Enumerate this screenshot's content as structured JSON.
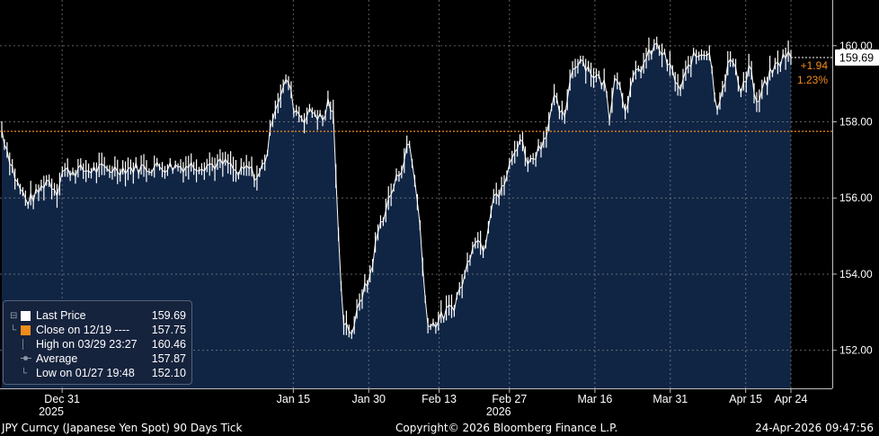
{
  "chart_data": {
    "type": "line",
    "style": "tick bars with filled area",
    "y_axis": {
      "side": "right",
      "ylim": [
        151.0,
        161.2
      ],
      "ticks": [
        "152.00",
        "154.00",
        "156.00",
        "158.00",
        "160.00"
      ],
      "grid": true
    },
    "x_axis": {
      "tick_labels": [
        "Dec 31",
        "Jan 15",
        "Jan 30",
        "Feb 13",
        "Feb 27",
        "Mar 16",
        "Mar 31",
        "Apr 15",
        "Apr 24"
      ],
      "year_labels": [
        {
          "year": "2025",
          "under": "Dec 31"
        },
        {
          "year": "2026",
          "under": "Feb 27"
        }
      ],
      "grid": true
    },
    "last_price": {
      "value": 159.69,
      "label": "159.69"
    },
    "change": {
      "abs": "+1.94",
      "pct": "1.23%"
    },
    "reference_line": {
      "value": 157.75,
      "color": "#f08c1a"
    },
    "series": [
      {
        "name": "Last Price",
        "color": "#ffffff",
        "fill": "#102544",
        "anchors": [
          [
            "Dec 19",
            157.8
          ],
          [
            "Dec 20",
            157.3
          ],
          [
            "Dec 22",
            156.4
          ],
          [
            "Dec 24",
            155.9
          ],
          [
            "Dec 26",
            156.1
          ],
          [
            "Dec 28",
            156.5
          ],
          [
            "Dec 30",
            156.2
          ],
          [
            "Dec 31",
            156.7
          ],
          [
            "Jan 02",
            156.9
          ],
          [
            "Jan 04",
            156.6
          ],
          [
            "Jan 06",
            156.8
          ],
          [
            "Jan 08",
            156.5
          ],
          [
            "Jan 10",
            157.3
          ],
          [
            "Jan 11",
            158.3
          ],
          [
            "Jan 13",
            158.9
          ],
          [
            "Jan 14",
            159.1
          ],
          [
            "Jan 15",
            158.4
          ],
          [
            "Jan 17",
            158.1
          ],
          [
            "Jan 19",
            158.3
          ],
          [
            "Jan 21",
            158.0
          ],
          [
            "Jan 22",
            158.6
          ],
          [
            "Jan 23",
            158.1
          ],
          [
            "Jan 24",
            154.9
          ],
          [
            "Jan 25",
            152.8
          ],
          [
            "Jan 27",
            152.4
          ],
          [
            "Jan 28",
            153.3
          ],
          [
            "Jan 30",
            153.8
          ],
          [
            "Feb 01",
            155.2
          ],
          [
            "Feb 04",
            156.3
          ],
          [
            "Feb 06",
            157.0
          ],
          [
            "Feb 07",
            157.5
          ],
          [
            "Feb 08",
            156.6
          ],
          [
            "Feb 09",
            155.7
          ],
          [
            "Feb 10",
            153.6
          ],
          [
            "Feb 11",
            152.6
          ],
          [
            "Feb 13",
            152.8
          ],
          [
            "Feb 16",
            153.2
          ],
          [
            "Feb 18",
            153.9
          ],
          [
            "Feb 20",
            155.0
          ],
          [
            "Feb 22",
            154.7
          ],
          [
            "Feb 24",
            156.3
          ],
          [
            "Feb 25",
            156.0
          ],
          [
            "Feb 27",
            156.8
          ],
          [
            "Mar 01",
            157.6
          ],
          [
            "Mar 03",
            156.9
          ],
          [
            "Mar 06",
            157.6
          ],
          [
            "Mar 08",
            158.6
          ],
          [
            "Mar 10",
            158.0
          ],
          [
            "Mar 11",
            159.2
          ],
          [
            "Mar 13",
            159.7
          ],
          [
            "Mar 16",
            159.2
          ],
          [
            "Mar 18",
            159.0
          ],
          [
            "Mar 19",
            158.1
          ],
          [
            "Mar 20",
            159.4
          ],
          [
            "Mar 22",
            158.4
          ],
          [
            "Mar 24",
            159.2
          ],
          [
            "Mar 26",
            159.6
          ],
          [
            "Mar 28",
            160.0
          ],
          [
            "Mar 29",
            159.9
          ],
          [
            "Mar 31",
            159.4
          ],
          [
            "Apr 02",
            158.8
          ],
          [
            "Apr 04",
            159.6
          ],
          [
            "Apr 06",
            159.8
          ],
          [
            "Apr 08",
            159.9
          ],
          [
            "Apr 09",
            158.3
          ],
          [
            "Apr 11",
            159.2
          ],
          [
            "Apr 12",
            159.7
          ],
          [
            "Apr 14",
            158.9
          ],
          [
            "Apr 15",
            159.1
          ],
          [
            "Apr 16",
            159.6
          ],
          [
            "Apr 17",
            158.3
          ],
          [
            "Apr 18",
            158.7
          ],
          [
            "Apr 20",
            159.3
          ],
          [
            "Apr 22",
            159.6
          ],
          [
            "Apr 23",
            159.8
          ],
          [
            "Apr 24",
            159.69
          ]
        ]
      }
    ],
    "legend": {
      "placement": "bottom-left",
      "entries": [
        {
          "label": "Last Price",
          "value": "159.69",
          "marker": "white-square"
        },
        {
          "label": "Close on 12/19 ----",
          "value": "157.75",
          "marker": "orange-square"
        },
        {
          "label": "High on 03/29 23:27",
          "value": "160.46",
          "marker": "none"
        },
        {
          "label": "Average",
          "value": "157.87",
          "marker": "line-dot"
        },
        {
          "label": "Low on 01/27 19:48",
          "value": "152.10",
          "marker": "none"
        }
      ]
    }
  },
  "footer": {
    "left": "JPY Curncy (Japanese Yen Spot) 90 Days Tick",
    "center": "Copyright© 2026 Bloomberg Finance L.P.",
    "right": "24-Apr-2026 09:47:56"
  }
}
